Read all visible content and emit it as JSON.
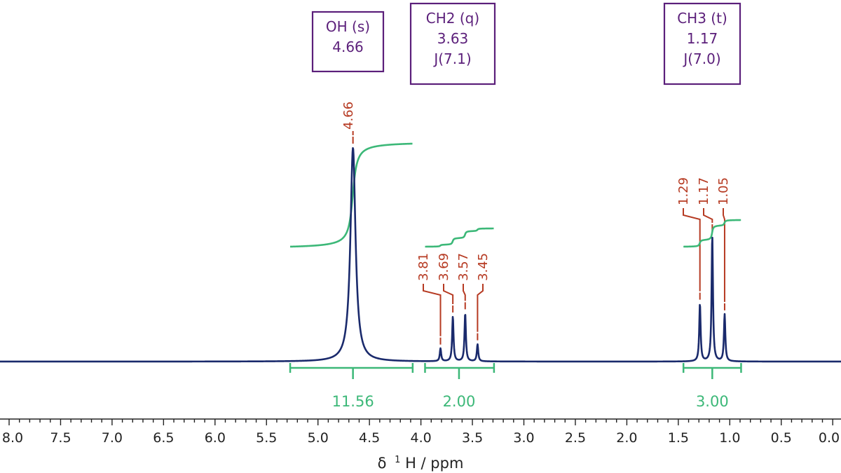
{
  "chart_data": {
    "type": "line",
    "title": "",
    "xlabel": "δ ¹H / ppm",
    "xlabel_parts": {
      "delta": "δ",
      "sup": "1",
      "rest": "H / ppm"
    },
    "xlim": [
      8.0,
      0.0
    ],
    "x_ticks": [
      "8.0",
      "7.5",
      "7.0",
      "6.5",
      "6.0",
      "5.5",
      "5.0",
      "4.5",
      "4.0",
      "3.5",
      "3.0",
      "2.5",
      "2.0",
      "1.5",
      "1.0",
      "0.5",
      "0.0"
    ],
    "colors": {
      "spectrum": "#1a2a6c",
      "integral": "#3cb878",
      "peak_label": "#b63a22",
      "annotation": "#5b1f7a",
      "axis": "#222222"
    },
    "peaks": [
      {
        "ppm": 4.66,
        "label": "4.66",
        "height": 1.0,
        "width": 0.03
      },
      {
        "ppm": 3.81,
        "label": "3.81",
        "height": 0.06,
        "width": 0.008
      },
      {
        "ppm": 3.69,
        "label": "3.69",
        "height": 0.21,
        "width": 0.008
      },
      {
        "ppm": 3.57,
        "label": "3.57",
        "height": 0.225,
        "width": 0.008
      },
      {
        "ppm": 3.45,
        "label": "3.45",
        "height": 0.08,
        "width": 0.008
      },
      {
        "ppm": 1.29,
        "label": "1.29",
        "height": 0.27,
        "width": 0.008
      },
      {
        "ppm": 1.17,
        "label": "1.17",
        "height": 0.59,
        "width": 0.008
      },
      {
        "ppm": 1.05,
        "label": "1.05",
        "height": 0.22,
        "width": 0.008
      }
    ],
    "integrals": [
      {
        "from": 5.27,
        "to": 4.08,
        "center": 4.66,
        "value": "11.56"
      },
      {
        "from": 3.96,
        "to": 3.29,
        "center": 3.63,
        "value": "2.00"
      },
      {
        "from": 1.45,
        "to": 0.89,
        "center": 1.17,
        "value": "3.00"
      }
    ],
    "annotations": [
      {
        "ppm": 4.66,
        "lines": [
          "OH (s)",
          "4.66"
        ]
      },
      {
        "ppm": 3.63,
        "lines": [
          "CH2 (q)",
          "3.63",
          "J(7.1)"
        ]
      },
      {
        "ppm": 1.17,
        "lines": [
          "CH3 (t)",
          "1.17",
          "J(7.0)"
        ]
      }
    ]
  }
}
